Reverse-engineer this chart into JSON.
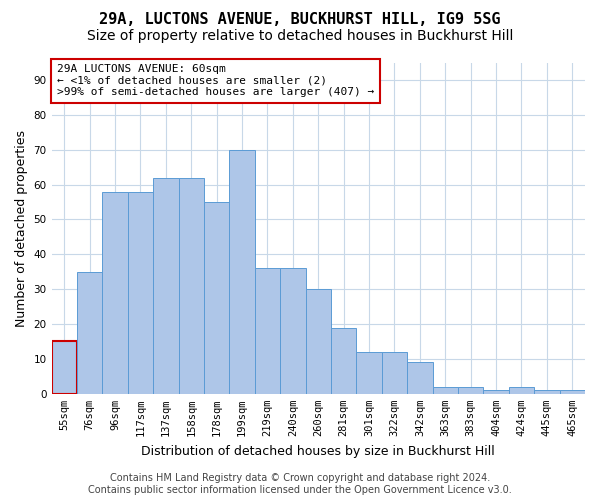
{
  "title": "29A, LUCTONS AVENUE, BUCKHURST HILL, IG9 5SG",
  "subtitle": "Size of property relative to detached houses in Buckhurst Hill",
  "xlabel": "Distribution of detached houses by size in Buckhurst Hill",
  "ylabel": "Number of detached properties",
  "bar_values": [
    15,
    35,
    58,
    58,
    62,
    62,
    55,
    70,
    36,
    36,
    30,
    19,
    12,
    12,
    9,
    2,
    2,
    1,
    2,
    1,
    1
  ],
  "bar_labels": [
    "55sqm",
    "76sqm",
    "96sqm",
    "117sqm",
    "137sqm",
    "158sqm",
    "178sqm",
    "199sqm",
    "219sqm",
    "240sqm",
    "260sqm",
    "281sqm",
    "301sqm",
    "322sqm",
    "342sqm",
    "363sqm",
    "383sqm",
    "404sqm",
    "424sqm",
    "445sqm",
    "465sqm"
  ],
  "bar_color": "#aec6e8",
  "bar_edge_color": "#5b9bd5",
  "annotation_box_text": "29A LUCTONS AVENUE: 60sqm\n← <1% of detached houses are smaller (2)\n>99% of semi-detached houses are larger (407) →",
  "annotation_box_color": "#ffffff",
  "annotation_box_edge_color": "#cc0000",
  "highlight_bar_index": 0,
  "highlight_bar_edge_color": "#cc0000",
  "ylim": [
    0,
    95
  ],
  "yticks": [
    0,
    10,
    20,
    30,
    40,
    50,
    60,
    70,
    80,
    90
  ],
  "background_color": "#ffffff",
  "grid_color": "#c8d8e8",
  "footer_line1": "Contains HM Land Registry data © Crown copyright and database right 2024.",
  "footer_line2": "Contains public sector information licensed under the Open Government Licence v3.0.",
  "title_fontsize": 11,
  "subtitle_fontsize": 10,
  "xlabel_fontsize": 9,
  "ylabel_fontsize": 9,
  "tick_fontsize": 7.5,
  "footer_fontsize": 7
}
